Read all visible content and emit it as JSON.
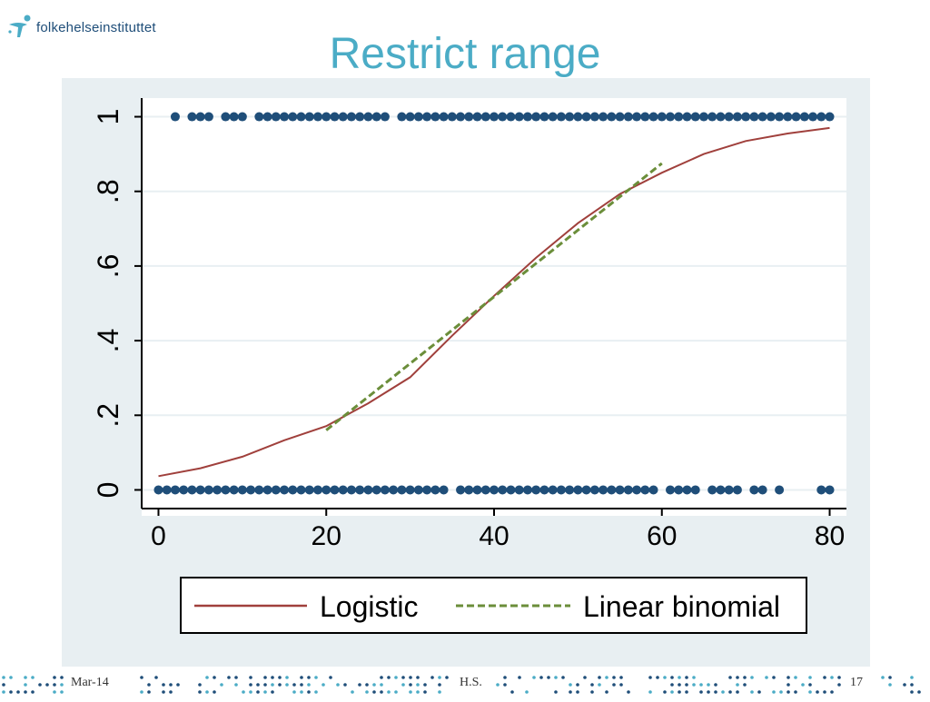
{
  "logo": {
    "text": "folkehelseinstituttet",
    "icon": "person-figure-icon"
  },
  "slide": {
    "title": "Restrict range"
  },
  "footer": {
    "date": "Mar-14",
    "author": "H.S.",
    "page": "17"
  },
  "colors": {
    "title": "#4bacc6",
    "points": "#1f4e79",
    "logistic": "#a0403c",
    "linear": "#6b8e3a",
    "panel": "#e8eff2"
  },
  "chart_data": {
    "type": "scatter",
    "title": "",
    "xlabel": "",
    "ylabel": "",
    "xlim": [
      -2,
      82
    ],
    "ylim": [
      -0.05,
      1.05
    ],
    "x_ticks": [
      "0",
      "20",
      "40",
      "60",
      "80"
    ],
    "y_ticks": [
      "0",
      ".2",
      ".4",
      ".6",
      ".8",
      "1"
    ],
    "grid": true,
    "legend_position": "bottom",
    "series": [
      {
        "name": "",
        "kind": "points",
        "y": 1,
        "x": [
          2,
          4,
          5,
          6,
          8,
          9,
          10,
          12,
          13,
          14,
          15,
          16,
          17,
          18,
          19,
          20,
          21,
          22,
          23,
          24,
          25,
          26,
          27,
          29,
          30,
          31,
          32,
          33,
          34,
          35,
          36,
          37,
          38,
          39,
          40,
          41,
          42,
          43,
          44,
          45,
          46,
          47,
          48,
          49,
          50,
          51,
          52,
          53,
          54,
          55,
          56,
          57,
          58,
          59,
          60,
          61,
          62,
          63,
          64,
          65,
          66,
          67,
          68,
          69,
          70,
          71,
          72,
          73,
          74,
          75,
          76,
          77,
          78,
          79,
          80
        ]
      },
      {
        "name": "",
        "kind": "points",
        "y": 0,
        "x": [
          0,
          1,
          2,
          3,
          4,
          5,
          6,
          7,
          8,
          9,
          10,
          11,
          12,
          13,
          14,
          15,
          16,
          17,
          18,
          19,
          20,
          21,
          22,
          23,
          24,
          25,
          26,
          27,
          28,
          29,
          30,
          31,
          32,
          33,
          34,
          36,
          37,
          38,
          39,
          40,
          41,
          42,
          43,
          44,
          45,
          46,
          47,
          48,
          49,
          50,
          51,
          52,
          53,
          54,
          55,
          56,
          57,
          58,
          59,
          61,
          62,
          63,
          64,
          66,
          67,
          68,
          69,
          71,
          72,
          74,
          79,
          80
        ]
      },
      {
        "name": "Logistic",
        "kind": "line",
        "style": "solid",
        "x": [
          0,
          5,
          10,
          15,
          20,
          25,
          30,
          35,
          40,
          45,
          50,
          55,
          60,
          65,
          70,
          75,
          80
        ],
        "y": [
          0.037,
          0.058,
          0.089,
          0.133,
          0.171,
          0.232,
          0.302,
          0.413,
          0.52,
          0.622,
          0.715,
          0.793,
          0.85,
          0.9,
          0.935,
          0.955,
          0.97
        ]
      },
      {
        "name": "Linear binomial",
        "kind": "line",
        "style": "dashed",
        "x": [
          20,
          60
        ],
        "y": [
          0.16,
          0.875
        ]
      }
    ]
  }
}
